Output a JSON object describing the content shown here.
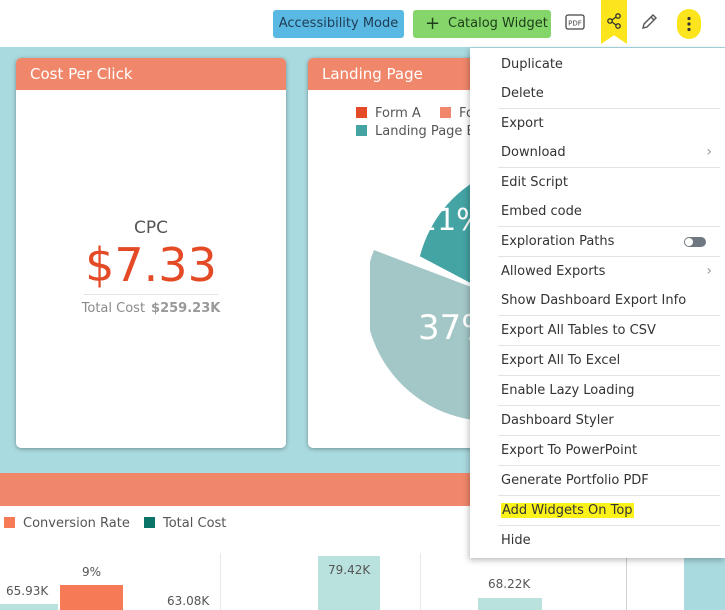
{
  "toolbar": {
    "accessibility_label": "Accessibility Mode",
    "catalog_label": "Catalog Widget",
    "icons": [
      "pdf-icon",
      "share-icon",
      "edit-icon",
      "more-vertical-icon"
    ]
  },
  "widgets": {
    "cpc": {
      "title": "Cost Per Click",
      "caption": "CPC",
      "value": "$7.33",
      "total_label": "Total Cost",
      "total_value": "$259.23K"
    },
    "landing": {
      "title": "Landing Page",
      "legend": [
        "Form A",
        "Fo",
        "Landing Page B"
      ],
      "slice_labels": [
        "21%",
        "37%"
      ],
      "colors": [
        "#e44a26",
        "#f0876a",
        "#44a3a3",
        "#a3c7c6"
      ]
    },
    "bottom": {
      "legend": [
        "Conversion Rate",
        "Total Cost"
      ],
      "labels": [
        "65.93K",
        "9%",
        "63.08K",
        "79.42K",
        "68.22K"
      ],
      "colors": [
        "#f67a55",
        "#b9e2df",
        "#0b7468"
      ]
    }
  },
  "menu": {
    "items": [
      "Duplicate",
      "Delete",
      "Export",
      "Download",
      "Edit Script",
      "Embed code",
      "Exploration Paths",
      "Allowed Exports",
      "Show Dashboard Export Info",
      "Export All Tables to CSV",
      "Export All To Excel",
      "Enable Lazy Loading",
      "Dashboard Styler",
      "Export To PowerPoint",
      "Generate Portfolio PDF",
      "Add Widgets On Top",
      "Hide"
    ],
    "exploration_paths_enabled": false
  }
}
